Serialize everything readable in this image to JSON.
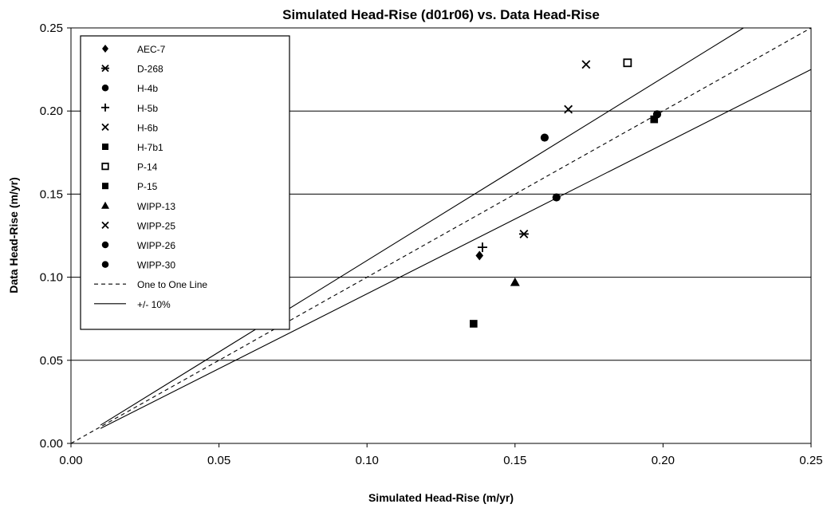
{
  "chart_data": {
    "type": "scatter",
    "title": "Simulated Head-Rise (d01r06) vs. Data Head-Rise",
    "xlabel": "Simulated Head-Rise (m/yr)",
    "ylabel": "Data Head-Rise (m/yr)",
    "xlim": [
      0,
      0.25
    ],
    "ylim": [
      0,
      0.25
    ],
    "x_ticks": [
      "0.00",
      "0.05",
      "0.10",
      "0.15",
      "0.20",
      "0.25"
    ],
    "y_ticks": [
      "0.00",
      "0.05",
      "0.10",
      "0.15",
      "0.20",
      "0.25"
    ],
    "grid": "horizontal",
    "legend_position": "top-left",
    "series": [
      {
        "name": "AEC-7",
        "marker": "diamond",
        "points": [
          [
            0.138,
            0.113
          ]
        ]
      },
      {
        "name": "D-268",
        "marker": "asterisk",
        "points": [
          [
            0.153,
            0.126
          ]
        ]
      },
      {
        "name": "H-4b",
        "marker": "circle",
        "points": [
          [
            0.16,
            0.184
          ]
        ]
      },
      {
        "name": "H-5b",
        "marker": "plus",
        "points": [
          [
            0.139,
            0.118
          ]
        ]
      },
      {
        "name": "H-6b",
        "marker": "x",
        "points": [
          [
            0.168,
            0.201
          ]
        ]
      },
      {
        "name": "H-7b1",
        "marker": "square",
        "points": [
          [
            0.136,
            0.072
          ]
        ]
      },
      {
        "name": "P-14",
        "marker": "square-open",
        "points": [
          [
            0.188,
            0.229
          ]
        ]
      },
      {
        "name": "P-15",
        "marker": "square",
        "points": [
          [
            0.197,
            0.195
          ]
        ]
      },
      {
        "name": "WIPP-13",
        "marker": "triangle",
        "points": [
          [
            0.15,
            0.097
          ]
        ]
      },
      {
        "name": "WIPP-25",
        "marker": "x",
        "points": [
          [
            0.174,
            0.228
          ]
        ]
      },
      {
        "name": "WIPP-26",
        "marker": "circle",
        "points": [
          [
            0.164,
            0.148
          ]
        ]
      },
      {
        "name": "WIPP-30",
        "marker": "circle",
        "points": [
          [
            0.198,
            0.198
          ]
        ]
      }
    ],
    "lines": [
      {
        "name": "One to One Line",
        "style": "dashed",
        "points": [
          [
            0,
            0
          ],
          [
            0.25,
            0.25
          ]
        ]
      },
      {
        "name": "+/- 10%",
        "style": "solid",
        "points": [
          [
            0.01,
            0.011
          ],
          [
            0.229,
            0.252
          ]
        ]
      },
      {
        "name": "",
        "style": "solid",
        "points": [
          [
            0.01,
            0.009
          ],
          [
            0.25,
            0.225
          ]
        ]
      }
    ],
    "colors": {
      "marker": "#000000",
      "line": "#000000",
      "grid": "#000000"
    }
  }
}
